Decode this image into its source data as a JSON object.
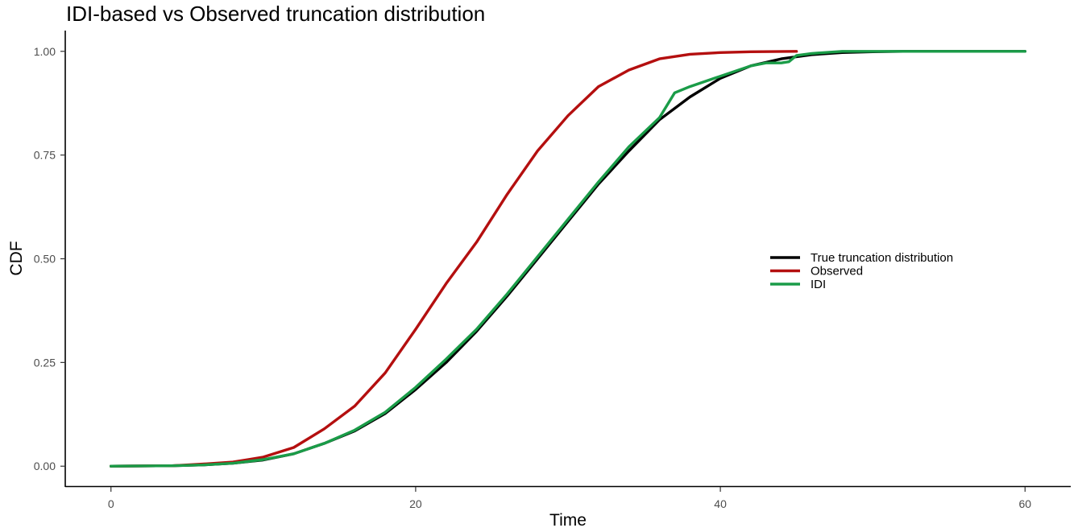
{
  "chart_data": {
    "type": "line",
    "title": "IDI-based vs Observed truncation distribution",
    "xlabel": "Time",
    "ylabel": "CDF",
    "xlim": [
      -3,
      63
    ],
    "ylim": [
      -0.05,
      1.05
    ],
    "x_ticks": [
      0,
      20,
      40,
      60
    ],
    "x_tick_labels": [
      "0",
      "20",
      "40",
      "60"
    ],
    "y_ticks": [
      0,
      0.25,
      0.5,
      0.75,
      1.0
    ],
    "y_tick_labels": [
      "0.00",
      "0.25",
      "0.50",
      "0.75",
      "1.00"
    ],
    "grid": false,
    "legend_position": "right",
    "series": [
      {
        "name": "True truncation distribution",
        "color": "#000000",
        "points": [
          [
            0,
            0
          ],
          [
            4,
            0.001
          ],
          [
            6,
            0.003
          ],
          [
            8,
            0.007
          ],
          [
            10,
            0.015
          ],
          [
            12,
            0.03
          ],
          [
            14,
            0.055
          ],
          [
            16,
            0.085
          ],
          [
            18,
            0.127
          ],
          [
            20,
            0.185
          ],
          [
            22,
            0.25
          ],
          [
            24,
            0.325
          ],
          [
            26,
            0.41
          ],
          [
            28,
            0.5
          ],
          [
            30,
            0.59
          ],
          [
            32,
            0.68
          ],
          [
            34,
            0.76
          ],
          [
            36,
            0.835
          ],
          [
            38,
            0.89
          ],
          [
            40,
            0.935
          ],
          [
            42,
            0.965
          ],
          [
            44,
            0.982
          ],
          [
            46,
            0.992
          ],
          [
            48,
            0.997
          ],
          [
            50,
            0.999
          ],
          [
            52,
            1.0
          ],
          [
            60,
            1.0
          ]
        ]
      },
      {
        "name": "Observed",
        "color": "#b40f0f",
        "points": [
          [
            0,
            0
          ],
          [
            4,
            0.001
          ],
          [
            6,
            0.005
          ],
          [
            8,
            0.01
          ],
          [
            9,
            0.016
          ],
          [
            10,
            0.022
          ],
          [
            12,
            0.045
          ],
          [
            14,
            0.09
          ],
          [
            16,
            0.145
          ],
          [
            18,
            0.225
          ],
          [
            20,
            0.33
          ],
          [
            22,
            0.44
          ],
          [
            24,
            0.54
          ],
          [
            26,
            0.655
          ],
          [
            28,
            0.76
          ],
          [
            30,
            0.845
          ],
          [
            32,
            0.915
          ],
          [
            34,
            0.955
          ],
          [
            36,
            0.982
          ],
          [
            38,
            0.993
          ],
          [
            40,
            0.997
          ],
          [
            42,
            0.999
          ],
          [
            45,
            1.0
          ]
        ]
      },
      {
        "name": "IDI",
        "color": "#1a9c48",
        "points": [
          [
            0,
            0
          ],
          [
            4,
            0.001
          ],
          [
            6,
            0.003
          ],
          [
            8,
            0.007
          ],
          [
            10,
            0.016
          ],
          [
            12,
            0.03
          ],
          [
            14,
            0.055
          ],
          [
            16,
            0.087
          ],
          [
            18,
            0.13
          ],
          [
            20,
            0.19
          ],
          [
            22,
            0.258
          ],
          [
            24,
            0.33
          ],
          [
            26,
            0.415
          ],
          [
            28,
            0.505
          ],
          [
            30,
            0.595
          ],
          [
            32,
            0.685
          ],
          [
            34,
            0.77
          ],
          [
            36,
            0.84
          ],
          [
            37,
            0.9
          ],
          [
            38,
            0.915
          ],
          [
            40,
            0.94
          ],
          [
            42,
            0.965
          ],
          [
            43,
            0.972
          ],
          [
            44,
            0.972
          ],
          [
            44.5,
            0.975
          ],
          [
            45,
            0.99
          ],
          [
            46,
            0.995
          ],
          [
            48,
            1.0
          ],
          [
            60,
            1.0
          ]
        ]
      }
    ]
  }
}
